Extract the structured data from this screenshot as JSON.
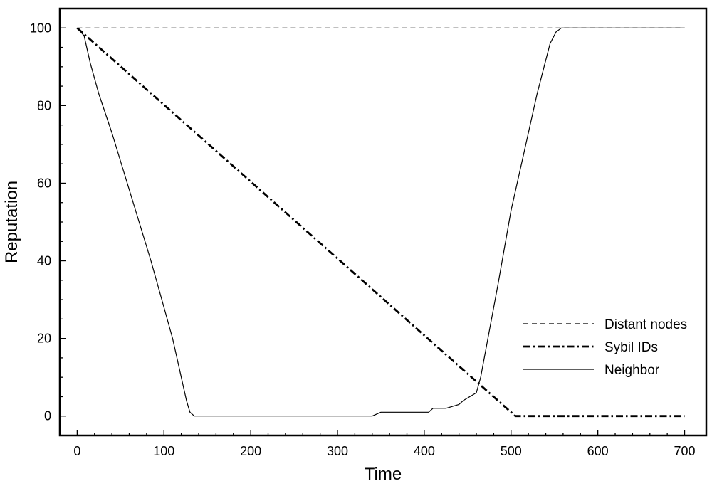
{
  "chart_data": {
    "type": "line",
    "title": "",
    "xlabel": "Time",
    "ylabel": "Reputation",
    "xlim": [
      -20,
      725
    ],
    "ylim": [
      -5,
      105
    ],
    "xticks": [
      0,
      100,
      200,
      300,
      400,
      500,
      600,
      700
    ],
    "yticks": [
      0,
      20,
      40,
      60,
      80,
      100
    ],
    "x_minor_step": 20,
    "y_minor_step": 5,
    "grid": false,
    "legend_position": "lower-right",
    "series": [
      {
        "name": "Distant nodes",
        "style": "dashed",
        "width": 1.2,
        "x": [
          0,
          700
        ],
        "y": [
          100,
          100
        ]
      },
      {
        "name": "Sybil IDs",
        "style": "dashdot",
        "width": 2.8,
        "x": [
          0,
          500,
          505,
          700
        ],
        "y": [
          100,
          1,
          0,
          0
        ]
      },
      {
        "name": "Neighbor",
        "style": "solid",
        "width": 1.2,
        "x": [
          0,
          8,
          15,
          25,
          40,
          55,
          70,
          85,
          100,
          110,
          120,
          126,
          130,
          135,
          340,
          350,
          405,
          410,
          415,
          425,
          440,
          445,
          460,
          465,
          475,
          485,
          500,
          515,
          530,
          545,
          552,
          558,
          700
        ],
        "y": [
          100,
          98,
          91,
          83,
          73,
          62,
          51,
          40,
          28,
          20,
          10,
          4,
          1,
          0,
          0,
          1,
          1,
          2,
          2,
          2,
          3,
          4,
          6,
          10,
          22,
          34,
          53,
          68,
          83,
          96,
          99,
          100,
          100
        ]
      }
    ]
  },
  "colors": {
    "line": "#000000",
    "background": "#ffffff"
  }
}
